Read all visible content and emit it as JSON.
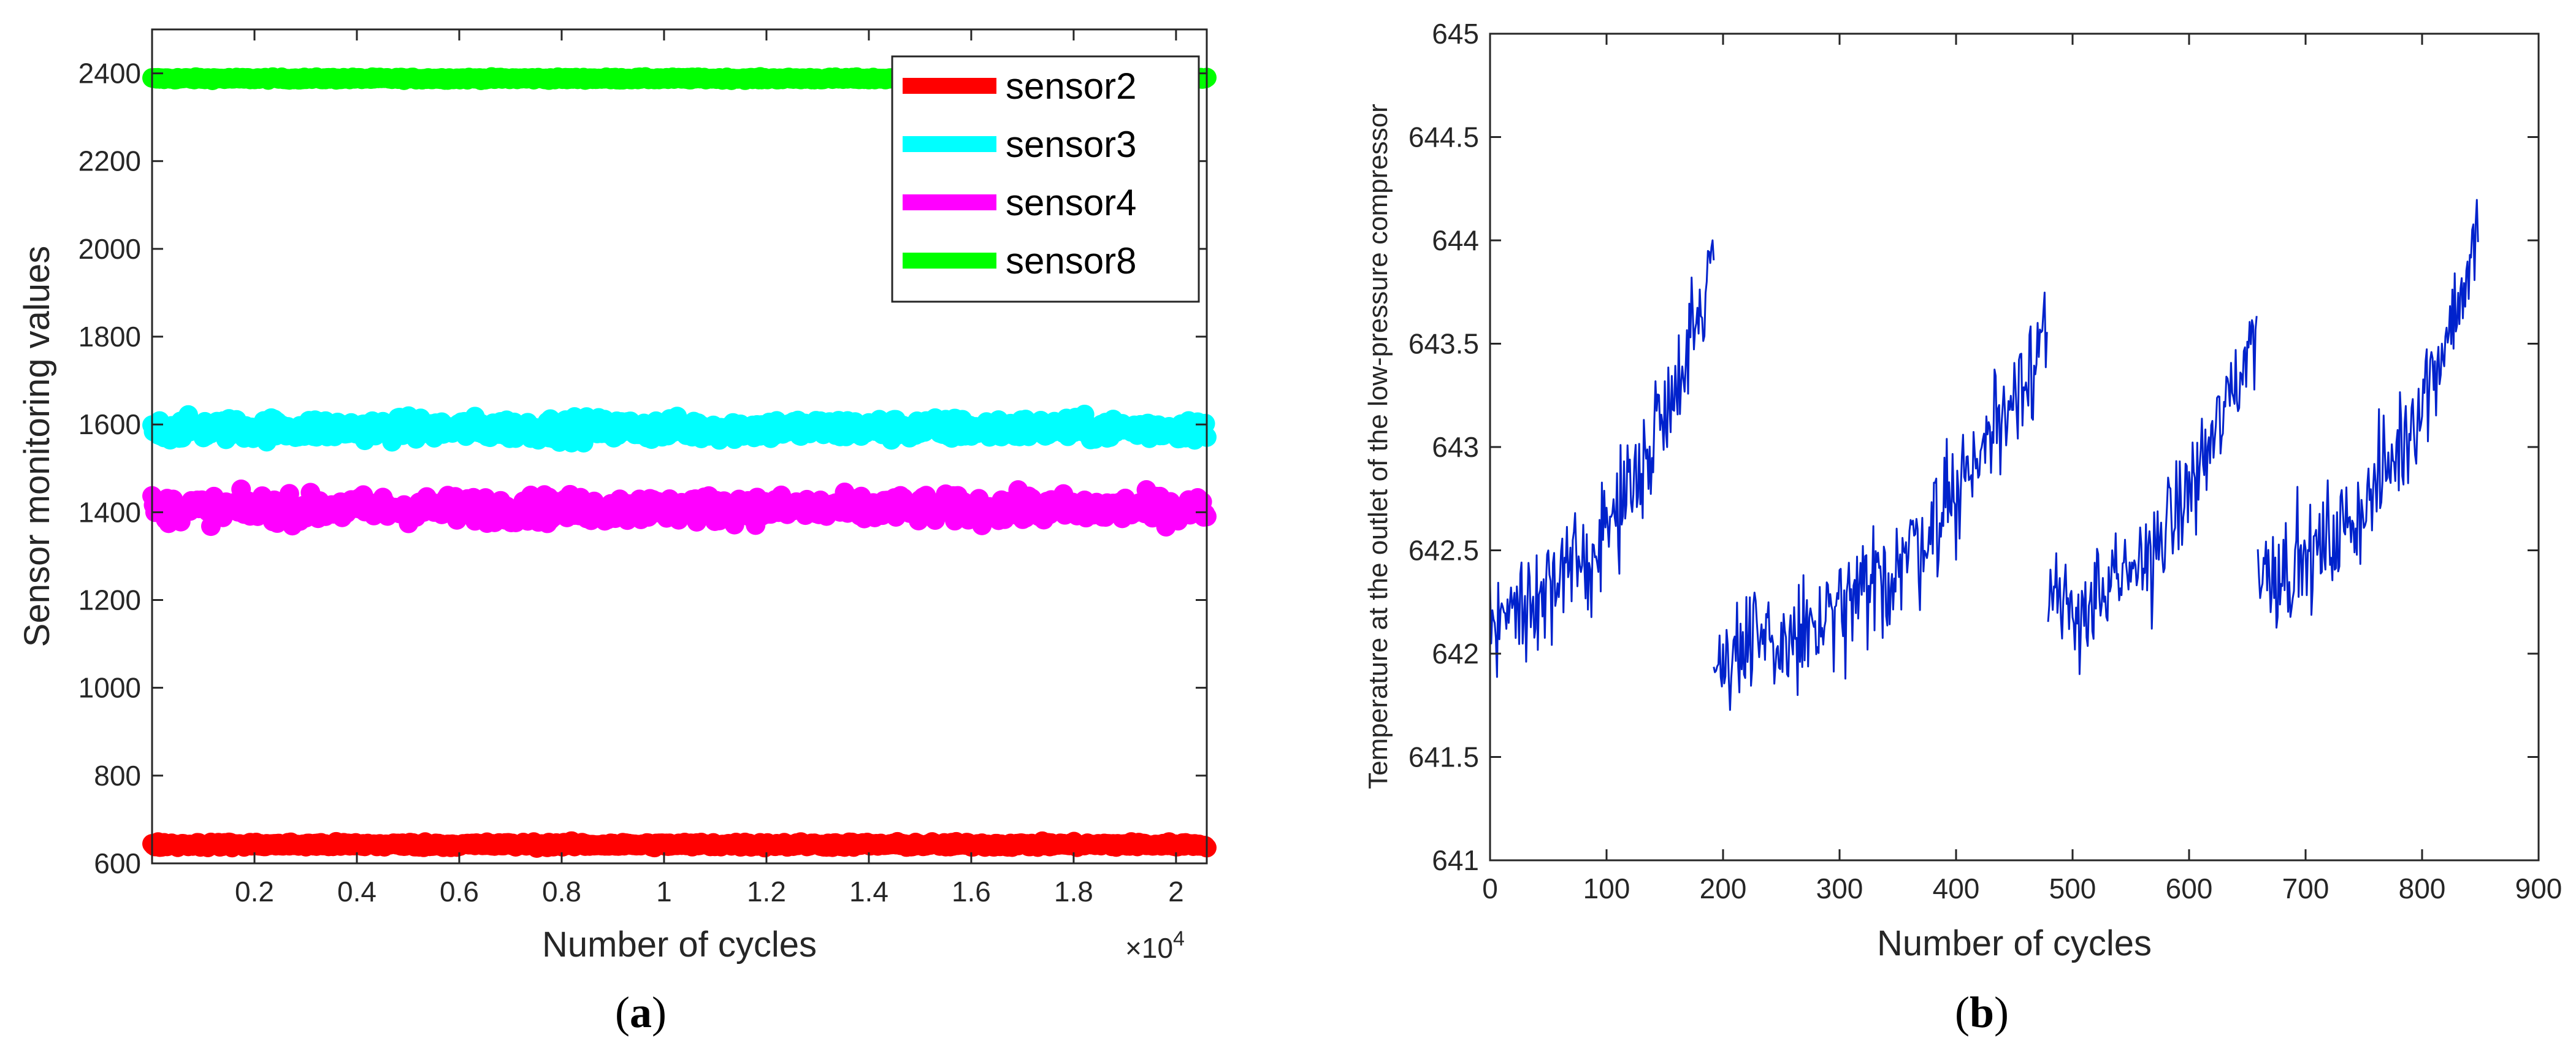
{
  "chart_data": [
    {
      "panel": "a",
      "type": "scatter",
      "xlabel": "Number of cycles",
      "ylabel": "Sensor monitoring values",
      "x_exponent_label": "×10",
      "x_exponent_power": "4",
      "xlim": [
        0,
        2.06
      ],
      "ylim": [
        600,
        2500
      ],
      "xticks": [
        0.2,
        0.4,
        0.6,
        0.8,
        1,
        1.2,
        1.4,
        1.6,
        1.8,
        2
      ],
      "xtick_labels": [
        "0.2",
        "0.4",
        "0.6",
        "0.8",
        "1",
        "1.2",
        "1.4",
        "1.6",
        "1.8",
        "2"
      ],
      "yticks": [
        600,
        800,
        1000,
        1200,
        1400,
        1600,
        1800,
        2000,
        2200,
        2400
      ],
      "ytick_labels": [
        "600",
        "800",
        "1000",
        "1200",
        "1400",
        "1600",
        "1800",
        "2000",
        "2200",
        "2400"
      ],
      "legend_position": "top-right",
      "series": [
        {
          "name": "sensor2",
          "color": "#ff0000",
          "mean": 642.5,
          "spread": 6
        },
        {
          "name": "sensor3",
          "color": "#00ffff",
          "mean": 1590,
          "spread": 25
        },
        {
          "name": "sensor4",
          "color": "#ff00ff",
          "mean": 1408,
          "spread": 30
        },
        {
          "name": "sensor8",
          "color": "#00ff00",
          "mean": 2388,
          "spread": 3
        }
      ]
    },
    {
      "panel": "b",
      "type": "line",
      "xlabel": "Number of cycles",
      "ylabel": "Temperature at the outlet of the low-pressure compressor",
      "xlim": [
        0,
        900
      ],
      "ylim": [
        641,
        645
      ],
      "xticks": [
        0,
        100,
        200,
        300,
        400,
        500,
        600,
        700,
        800,
        900
      ],
      "xtick_labels": [
        "0",
        "100",
        "200",
        "300",
        "400",
        "500",
        "600",
        "700",
        "800",
        "900"
      ],
      "yticks": [
        641,
        641.5,
        642,
        642.5,
        643,
        643.5,
        644,
        644.5,
        645
      ],
      "ytick_labels": [
        "641",
        "641.5",
        "642",
        "642.5",
        "643",
        "643.5",
        "644",
        "644.5",
        "645"
      ],
      "line_color": "#0022cc",
      "segments": [
        {
          "x_start": 0,
          "x_end": 192,
          "y_start": 642.2,
          "y_end": 643.9,
          "noise": 0.25
        },
        {
          "x_start": 192,
          "x_end": 478,
          "y_start": 642.0,
          "y_end": 643.6,
          "noise": 0.28
        },
        {
          "x_start": 479,
          "x_end": 658,
          "y_start": 642.2,
          "y_end": 643.6,
          "noise": 0.25
        },
        {
          "x_start": 659,
          "x_end": 848,
          "y_start": 642.4,
          "y_end": 644.0,
          "noise": 0.25
        }
      ]
    }
  ],
  "panel_labels": {
    "a": "a",
    "b": "b",
    "open": "(",
    "close": ")"
  }
}
